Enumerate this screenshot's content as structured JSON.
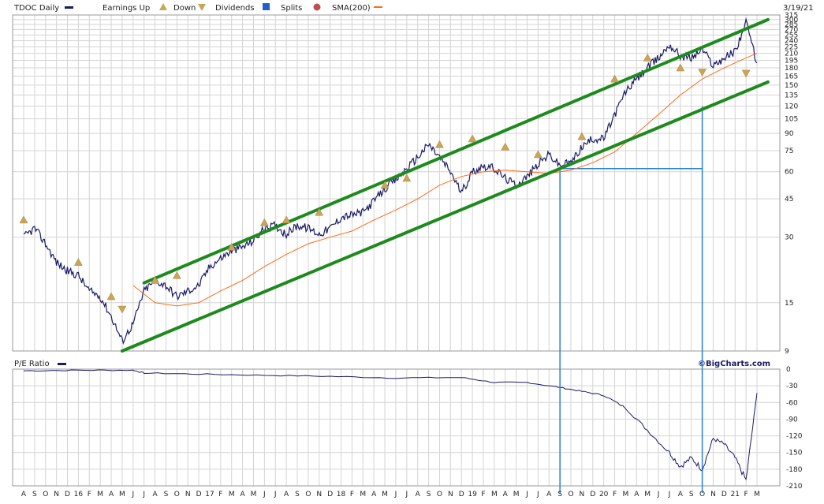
{
  "colors": {
    "price": "#1a1a66",
    "sma": "#ff6a1a",
    "trend": "#1e8a1e",
    "annotation": "#2a7fd4",
    "earnings_up": "#c9a55a",
    "earnings_down": "#c9a55a",
    "dividend": "#1f5fcf",
    "split": "#c0504d",
    "grid": "#d4d4d4"
  },
  "chart_data": [
    {
      "type": "line",
      "title": "TDOC Daily",
      "date_label": "3/19/21",
      "legend": {
        "placement": "top-left",
        "items": [
          {
            "label": "TDOC Daily",
            "icon": "line-swatch-icon"
          },
          {
            "label": "Earnings Up",
            "icon": "earnings-up-icon"
          },
          {
            "label": "Down",
            "icon": "earnings-down-icon"
          },
          {
            "label": "Dividends",
            "icon": "dividend-icon"
          },
          {
            "label": "Splits",
            "icon": "split-icon"
          },
          {
            "label": "SMA(200)",
            "icon": "sma-swatch-icon"
          }
        ]
      },
      "y_scale": "log",
      "ylim": [
        9,
        315
      ],
      "yticks": [
        9,
        15,
        30,
        45,
        60,
        75,
        90,
        105,
        120,
        135,
        150,
        165,
        180,
        195,
        210,
        225,
        240,
        255,
        270,
        285,
        300,
        315
      ],
      "grid": true,
      "series": [
        {
          "name": "TDOC Daily",
          "x": [
            "2015-08",
            "2015-09",
            "2015-10",
            "2015-11",
            "2015-12",
            "2016-01",
            "2016-02",
            "2016-03",
            "2016-04",
            "2016-05",
            "2016-06",
            "2016-07",
            "2016-08",
            "2016-09",
            "2016-10",
            "2016-11",
            "2016-12",
            "2017-01",
            "2017-02",
            "2017-03",
            "2017-04",
            "2017-05",
            "2017-06",
            "2017-07",
            "2017-08",
            "2017-09",
            "2017-10",
            "2017-11",
            "2017-12",
            "2018-01",
            "2018-02",
            "2018-03",
            "2018-04",
            "2018-05",
            "2018-06",
            "2018-07",
            "2018-08",
            "2018-09",
            "2018-10",
            "2018-11",
            "2018-12",
            "2019-01",
            "2019-02",
            "2019-03",
            "2019-04",
            "2019-05",
            "2019-06",
            "2019-07",
            "2019-08",
            "2019-09",
            "2019-10",
            "2019-11",
            "2019-12",
            "2020-01",
            "2020-02",
            "2020-03",
            "2020-04",
            "2020-05",
            "2020-06",
            "2020-07",
            "2020-08",
            "2020-09",
            "2020-10",
            "2020-11",
            "2020-12",
            "2021-01",
            "2021-02",
            "2021-03"
          ],
          "values": [
            30,
            33,
            28,
            23,
            21,
            20,
            17,
            16,
            13,
            10,
            12,
            17,
            19,
            18,
            16,
            17,
            18,
            22,
            24,
            26,
            27,
            29,
            33,
            34,
            31,
            34,
            33,
            31,
            33,
            37,
            38,
            39,
            44,
            50,
            55,
            62,
            70,
            80,
            70,
            60,
            48,
            60,
            64,
            62,
            56,
            52,
            57,
            65,
            72,
            64,
            66,
            78,
            85,
            85,
            110,
            140,
            160,
            180,
            200,
            230,
            205,
            200,
            220,
            185,
            200,
            215,
            290,
            190
          ]
        },
        {
          "name": "SMA(200)",
          "x": [
            "2016-06",
            "2016-08",
            "2016-10",
            "2016-12",
            "2017-02",
            "2017-04",
            "2017-06",
            "2017-08",
            "2017-10",
            "2017-12",
            "2018-02",
            "2018-04",
            "2018-06",
            "2018-08",
            "2018-10",
            "2018-12",
            "2019-02",
            "2019-04",
            "2019-06",
            "2019-08",
            "2019-10",
            "2019-12",
            "2020-02",
            "2020-04",
            "2020-06",
            "2020-08",
            "2020-10",
            "2020-12",
            "2021-02",
            "2021-03"
          ],
          "values": [
            18,
            15,
            14.5,
            15,
            17,
            19,
            22,
            25,
            28,
            30,
            32,
            36,
            40,
            45,
            52,
            57,
            60,
            61,
            60,
            59,
            61,
            66,
            74,
            90,
            110,
            135,
            160,
            180,
            200,
            210
          ]
        }
      ],
      "trendlines": [
        {
          "name": "upper-channel",
          "from": {
            "x": "2016-07",
            "y": 18.5
          },
          "to": {
            "x": "2021-04",
            "y": 300
          }
        },
        {
          "name": "lower-channel",
          "from": {
            "x": "2016-05",
            "y": 9
          },
          "to": {
            "x": "2021-04",
            "y": 155
          }
        }
      ],
      "earnings_markers": [
        {
          "x": "2015-08",
          "y": 36,
          "kind": "up"
        },
        {
          "x": "2016-01",
          "y": 23,
          "kind": "up"
        },
        {
          "x": "2016-04",
          "y": 16,
          "kind": "up"
        },
        {
          "x": "2016-05",
          "y": 14,
          "kind": "down"
        },
        {
          "x": "2016-08",
          "y": 19,
          "kind": "up"
        },
        {
          "x": "2016-10",
          "y": 20,
          "kind": "up"
        },
        {
          "x": "2017-03",
          "y": 27,
          "kind": "up"
        },
        {
          "x": "2017-06",
          "y": 35,
          "kind": "up"
        },
        {
          "x": "2017-08",
          "y": 36,
          "kind": "up"
        },
        {
          "x": "2017-11",
          "y": 39,
          "kind": "up"
        },
        {
          "x": "2018-05",
          "y": 52,
          "kind": "up"
        },
        {
          "x": "2018-07",
          "y": 56,
          "kind": "up"
        },
        {
          "x": "2018-10",
          "y": 80,
          "kind": "up"
        },
        {
          "x": "2019-01",
          "y": 85,
          "kind": "up"
        },
        {
          "x": "2019-04",
          "y": 78,
          "kind": "up"
        },
        {
          "x": "2019-07",
          "y": 72,
          "kind": "up"
        },
        {
          "x": "2019-11",
          "y": 87,
          "kind": "up"
        },
        {
          "x": "2020-02",
          "y": 160,
          "kind": "up"
        },
        {
          "x": "2020-05",
          "y": 200,
          "kind": "up"
        },
        {
          "x": "2020-08",
          "y": 180,
          "kind": "up"
        },
        {
          "x": "2020-10",
          "y": 172,
          "kind": "down"
        },
        {
          "x": "2021-02",
          "y": 170,
          "kind": "down"
        }
      ],
      "annotations": [
        {
          "name": "rect-2019-09",
          "x1": "2019-09",
          "x2": "2020-10",
          "y": 62
        },
        {
          "name": "vertical-2019-09",
          "x": "2019-09",
          "from_y": 62
        },
        {
          "name": "vertical-2020-10",
          "x": "2020-10",
          "from_y": 120
        }
      ],
      "xticks": [
        "A",
        "S",
        "O",
        "N",
        "D",
        "16",
        "F",
        "M",
        "A",
        "M",
        "J",
        "J",
        "A",
        "S",
        "O",
        "N",
        "D",
        "17",
        "F",
        "M",
        "A",
        "M",
        "J",
        "J",
        "A",
        "S",
        "O",
        "N",
        "D",
        "18",
        "F",
        "M",
        "A",
        "M",
        "J",
        "J",
        "A",
        "S",
        "O",
        "N",
        "D",
        "19",
        "F",
        "M",
        "A",
        "M",
        "J",
        "J",
        "A",
        "S",
        "O",
        "N",
        "D",
        "20",
        "F",
        "M",
        "A",
        "M",
        "J",
        "J",
        "A",
        "S",
        "O",
        "N",
        "D",
        "21",
        "F",
        "M"
      ]
    },
    {
      "type": "line",
      "title": "P/E Ratio",
      "source": "©BigCharts.com",
      "ylim": [
        -210,
        0
      ],
      "yticks": [
        0,
        -30,
        -60,
        -90,
        -120,
        -150,
        -180,
        -210
      ],
      "grid": true,
      "series": [
        {
          "name": "P/E Ratio",
          "x": [
            "2015-08",
            "2016-01",
            "2016-06",
            "2016-07",
            "2016-12",
            "2017-06",
            "2017-12",
            "2018-06",
            "2018-12",
            "2019-03",
            "2019-06",
            "2019-09",
            "2019-11",
            "2020-01",
            "2020-03",
            "2020-05",
            "2020-07",
            "2020-08",
            "2020-09",
            "2020-10",
            "2020-11",
            "2020-12",
            "2021-01",
            "2021-02",
            "2021-03"
          ],
          "values": [
            -3,
            -2,
            -2,
            -7,
            -9,
            -11,
            -13,
            -16,
            -15,
            -24,
            -24,
            -33,
            -40,
            -47,
            -70,
            -110,
            -150,
            -175,
            -160,
            -180,
            -125,
            -135,
            -160,
            -200,
            -43
          ]
        }
      ]
    }
  ]
}
